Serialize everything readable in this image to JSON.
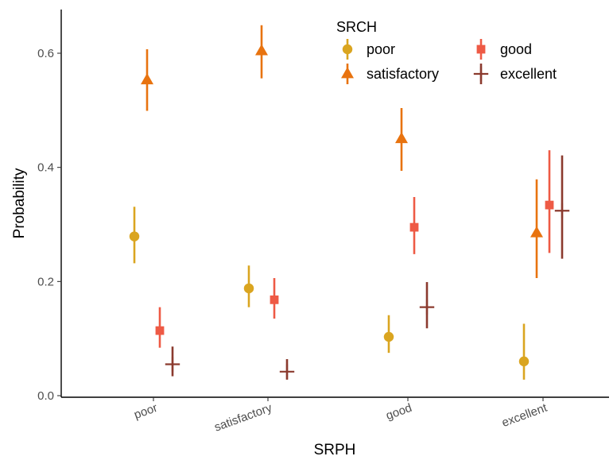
{
  "chart_data": {
    "type": "scatter",
    "xlabel": "SRPH",
    "ylabel": "Probability",
    "categories": [
      "poor",
      "satisfactory",
      "good",
      "excellent"
    ],
    "yticks": [
      "0.0",
      "0.2",
      "0.4",
      "0.6"
    ],
    "ylim": [
      0.0,
      0.68
    ],
    "grid": false,
    "legend": {
      "title": "SRCH",
      "placement": "top-right",
      "columns": 2
    },
    "series": [
      {
        "name": "poor",
        "color": "#DAA520",
        "marker": "circle",
        "values": [
          0.279,
          0.188,
          0.103,
          0.06
        ],
        "lower": [
          0.232,
          0.155,
          0.075,
          0.028
        ],
        "upper": [
          0.331,
          0.228,
          0.141,
          0.126
        ]
      },
      {
        "name": "satisfactory",
        "color": "#E8730F",
        "marker": "triangle",
        "values": [
          0.553,
          0.604,
          0.45,
          0.285
        ],
        "lower": [
          0.499,
          0.556,
          0.394,
          0.206
        ],
        "upper": [
          0.607,
          0.649,
          0.504,
          0.379
        ]
      },
      {
        "name": "good",
        "color": "#EE5A45",
        "marker": "square",
        "values": [
          0.114,
          0.168,
          0.295,
          0.334
        ],
        "lower": [
          0.084,
          0.135,
          0.248,
          0.25
        ],
        "upper": [
          0.155,
          0.206,
          0.348,
          0.43
        ]
      },
      {
        "name": "excellent",
        "color": "#8B3A2E",
        "marker": "cross",
        "values": [
          0.055,
          0.042,
          0.155,
          0.324
        ],
        "lower": [
          0.034,
          0.028,
          0.118,
          0.24
        ],
        "upper": [
          0.086,
          0.064,
          0.199,
          0.421
        ]
      }
    ]
  }
}
